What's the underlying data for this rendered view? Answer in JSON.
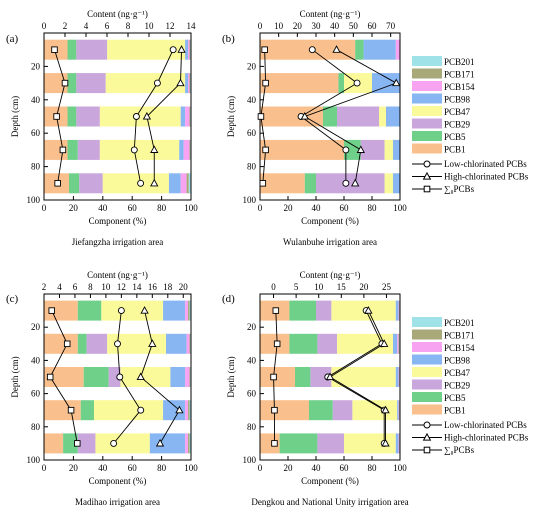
{
  "figure": {
    "y_axis_label": "Depth (cm)",
    "x_bottom_label": "Component (%)",
    "x_top_label": "Content (ng·g⁻¹)",
    "legend_components": [
      "PCB201",
      "PCB171",
      "PCB154",
      "PCB98",
      "PCB47",
      "PCB29",
      "PCB5",
      "PCB1"
    ],
    "legend_lines": [
      "Low-chlorinated PCBs",
      "High-chlorinated PCBs",
      "∑₈PCBs"
    ],
    "component_colors": {
      "PCB1": "#f9c08d",
      "PCB5": "#6fd08a",
      "PCB29": "#c9a6dc",
      "PCB47": "#fafa9a",
      "PCB98": "#88b6f3",
      "PCB154": "#f7a3f2",
      "PCB171": "#a8a878",
      "PCB201": "#9fe2e8"
    }
  },
  "chart_data": [
    {
      "type": "bar",
      "letter": "(a)",
      "area": "Jiefangzha irrigation area",
      "depths": [
        10,
        30,
        50,
        70,
        90
      ],
      "ylim": [
        0,
        100
      ],
      "yticks": [
        20,
        40,
        60,
        80,
        100
      ],
      "xlim_component": [
        0,
        100
      ],
      "xticks_component": [
        0,
        20,
        40,
        60,
        80,
        100
      ],
      "xlim_content": [
        0,
        14
      ],
      "xticks_content": [
        0,
        2,
        4,
        6,
        8,
        10,
        12,
        14
      ],
      "components": {
        "PCB1": [
          16,
          16,
          16,
          16,
          17
        ],
        "PCB5": [
          6,
          6,
          6,
          7,
          7
        ],
        "PCB29": [
          21,
          20,
          16,
          15,
          16
        ],
        "PCB47": [
          53,
          54,
          55,
          54,
          45
        ],
        "PCB98": [
          2,
          2,
          3,
          3,
          8
        ],
        "PCB154": [
          1,
          1,
          3,
          4,
          4
        ],
        "PCB171": [
          0.5,
          0.5,
          0.5,
          0.5,
          1.5
        ],
        "PCB201": [
          0.5,
          0.5,
          0.5,
          0.5,
          1.5
        ]
      },
      "content": {
        "Low-chlorinated PCBs": [
          12.3,
          10.8,
          8.8,
          8.6,
          9.2
        ],
        "High-chlorinated PCBs": [
          13.1,
          13.0,
          9.8,
          10.5,
          10.5
        ],
        "∑₈PCBs": [
          1.0,
          2.0,
          1.2,
          1.8,
          1.3
        ]
      }
    },
    {
      "type": "bar",
      "letter": "(b)",
      "area": "Wulanbuhe irrigation area",
      "depths": [
        10,
        30,
        50,
        70,
        90
      ],
      "ylim": [
        0,
        100
      ],
      "yticks": [
        20,
        40,
        60,
        80,
        100
      ],
      "xlim_component": [
        0,
        100
      ],
      "xticks_component": [
        0,
        20,
        40,
        60,
        80,
        100
      ],
      "xlim_content": [
        0,
        75
      ],
      "xticks_content": [
        0,
        10,
        20,
        30,
        40,
        50,
        60,
        70
      ],
      "components": {
        "PCB1": [
          68,
          56,
          45,
          60,
          32
        ],
        "PCB5": [
          6,
          4,
          10,
          12,
          8
        ],
        "PCB29": [
          0,
          0,
          30,
          17,
          49
        ],
        "PCB47": [
          0,
          20,
          5,
          6,
          6
        ],
        "PCB98": [
          23,
          20,
          10,
          5,
          5
        ],
        "PCB154": [
          3,
          0,
          0,
          0,
          0
        ],
        "PCB171": [
          0,
          0,
          0,
          0,
          0
        ],
        "PCB201": [
          0,
          0,
          0,
          0,
          0
        ]
      },
      "content": {
        "Low-chlorinated PCBs": [
          28,
          52,
          22,
          46,
          46
        ],
        "High-chlorinated PCBs": [
          41,
          73,
          24,
          54,
          51
        ],
        "∑₈PCBs": [
          2.5,
          3,
          0.5,
          3,
          1.5
        ]
      }
    },
    {
      "type": "bar",
      "letter": "(c)",
      "area": "Madihao irrigation area",
      "depths": [
        10,
        30,
        50,
        70,
        90
      ],
      "ylim": [
        0,
        100
      ],
      "yticks": [
        20,
        40,
        60,
        80,
        100
      ],
      "xlim_component": [
        0,
        100
      ],
      "xticks_component": [
        0,
        20,
        40,
        60,
        80,
        100
      ],
      "xlim_content": [
        2,
        21
      ],
      "xticks_content": [
        2,
        4,
        6,
        8,
        10,
        12,
        14,
        16,
        18,
        20
      ],
      "components": {
        "PCB1": [
          23,
          23,
          27,
          25,
          13
        ],
        "PCB5": [
          16,
          6,
          17,
          9,
          10
        ],
        "PCB29": [
          0,
          14,
          8,
          0,
          12
        ],
        "PCB47": [
          42,
          40,
          34,
          47,
          37
        ],
        "PCB98": [
          15,
          14,
          10,
          15,
          24
        ],
        "PCB154": [
          2,
          2,
          3,
          2,
          2
        ],
        "PCB171": [
          1,
          0.5,
          0.5,
          1,
          1
        ],
        "PCB201": [
          1,
          0.5,
          0.5,
          1,
          1
        ]
      },
      "content": {
        "Low-chlorinated PCBs": [
          12.0,
          11.5,
          11.8,
          14.5,
          11.0
        ],
        "High-chlorinated PCBs": [
          15.0,
          16.0,
          14.5,
          19.5,
          17.0
        ],
        "∑₈PCBs": [
          3.0,
          5.0,
          2.8,
          5.5,
          6.3
        ]
      }
    },
    {
      "type": "bar",
      "letter": "(d)",
      "area": "Dengkou and National Unity irrigation area",
      "depths": [
        10,
        30,
        50,
        70,
        90
      ],
      "ylim": [
        0,
        100
      ],
      "yticks": [
        20,
        40,
        60,
        80,
        100
      ],
      "xlim_component": [
        0,
        100
      ],
      "xticks_component": [
        0,
        20,
        40,
        60,
        80,
        100
      ],
      "xlim_content": [
        -3,
        28
      ],
      "xticks_content": [
        0,
        5,
        10,
        15,
        20,
        25
      ],
      "components": {
        "PCB1": [
          21,
          21,
          25,
          35,
          14
        ],
        "PCB5": [
          19,
          20,
          11,
          17,
          27
        ],
        "PCB29": [
          11,
          14,
          15,
          14,
          19
        ],
        "PCB47": [
          46,
          40,
          46,
          32,
          37
        ],
        "PCB98": [
          2,
          3,
          2,
          1,
          2
        ],
        "PCB154": [
          0.5,
          1,
          0.5,
          0.5,
          0.5
        ],
        "PCB171": [
          0.3,
          0.5,
          0.3,
          0.3,
          0.3
        ],
        "PCB201": [
          0.2,
          0.5,
          0.2,
          0.2,
          0.2
        ]
      },
      "content": {
        "Low-chlorinated PCBs": [
          20.5,
          24.0,
          12.0,
          24.5,
          24.5
        ],
        "High-chlorinated PCBs": [
          21.0,
          24.5,
          12.5,
          24.8,
          24.8
        ],
        "∑₈PCBs": [
          0.5,
          0.8,
          0.0,
          0.2,
          0.2
        ]
      }
    }
  ]
}
